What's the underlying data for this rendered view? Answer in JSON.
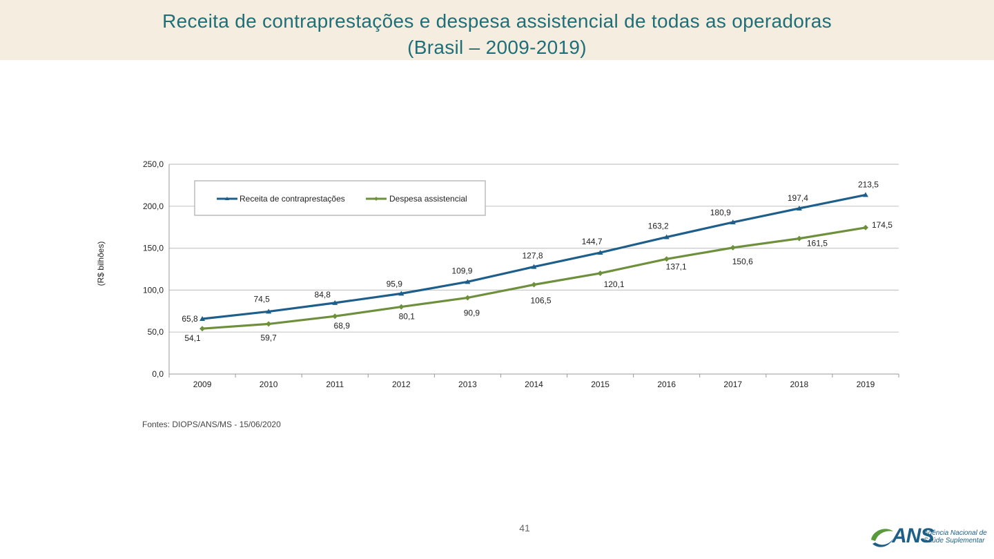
{
  "header": {
    "title_line1": "Receita de contraprestações e despesa assistencial de todas as operadoras",
    "title_line2": "(Brasil – 2009-2019)"
  },
  "chart_data": {
    "type": "line",
    "title": "Receita de contraprestações e despesa assistencial de todas as operadoras (Brasil – 2009-2019)",
    "xlabel": "",
    "ylabel": "(R$ bilhões)",
    "categories": [
      "2009",
      "2010",
      "2011",
      "2012",
      "2013",
      "2014",
      "2015",
      "2016",
      "2017",
      "2018",
      "2019"
    ],
    "ylim": [
      0,
      250
    ],
    "yticks": [
      "0,0",
      "50,0",
      "100,0",
      "150,0",
      "200,0",
      "250,0"
    ],
    "grid": true,
    "legend_position": "top-left",
    "series": [
      {
        "name": "Receita de contraprestações",
        "color": "#1d5f8a",
        "marker": "triangle",
        "values": [
          65.8,
          74.5,
          84.8,
          95.9,
          109.9,
          127.8,
          144.7,
          163.2,
          180.9,
          197.4,
          213.5
        ],
        "labels": [
          "65,8",
          "74,5",
          "84,8",
          "95,9",
          "109,9",
          "127,8",
          "144,7",
          "163,2",
          "180,9",
          "197,4",
          "213,5"
        ]
      },
      {
        "name": "Despesa assistencial",
        "color": "#6e8f3c",
        "marker": "diamond",
        "values": [
          54.1,
          59.7,
          68.9,
          80.1,
          90.9,
          106.5,
          120.1,
          137.1,
          150.6,
          161.5,
          174.5
        ],
        "labels": [
          "54,1",
          "59,7",
          "68,9",
          "80,1",
          "90,9",
          "106,5",
          "120,1",
          "137,1",
          "150,6",
          "161,5",
          "174,5"
        ]
      }
    ]
  },
  "footer": {
    "source": "Fontes: DIOPS/ANS/MS - 15/06/2020",
    "page_number": "41",
    "logo_text": "ANS",
    "logo_sub_line1": "Agência Nacional de",
    "logo_sub_line2": "Saúde Suplementar"
  },
  "colors": {
    "title": "#1f6f78",
    "header_band": "#f4ede0",
    "grid": "#c8c8c8",
    "axis": "#999999"
  }
}
